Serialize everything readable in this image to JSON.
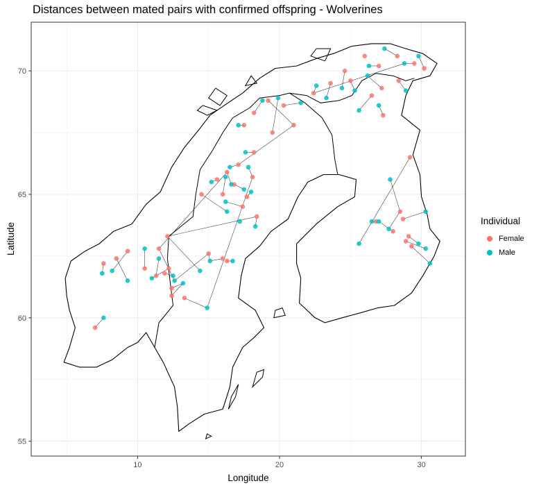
{
  "chart_data": {
    "type": "scatter",
    "title": "Distances between mated pairs with confirmed offspring - Wolverines",
    "xlabel": "Longitude",
    "ylabel": "Latitude",
    "xlim": [
      2.5,
      33.1
    ],
    "ylim": [
      54.4,
      71.97
    ],
    "x_ticks": [
      10,
      20,
      30
    ],
    "y_ticks": [
      55,
      60,
      65,
      70
    ],
    "grid": true,
    "legend": {
      "title": "Individual",
      "position": "right"
    },
    "colors": {
      "Female": "#F8766D",
      "Male": "#00BFC4",
      "lines": "#222222",
      "map": "#000000"
    },
    "series": [
      {
        "name": "Female",
        "points": [
          [
            7.0,
            59.6
          ],
          [
            7.6,
            62.2
          ],
          [
            8.5,
            62.4
          ],
          [
            9.3,
            62.7
          ],
          [
            10.5,
            62.0
          ],
          [
            11.3,
            61.7
          ],
          [
            11.9,
            61.8
          ],
          [
            12.4,
            61.2
          ],
          [
            12.2,
            62.0
          ],
          [
            11.5,
            62.8
          ],
          [
            12.1,
            63.3
          ],
          [
            12.4,
            60.9
          ],
          [
            13.3,
            60.8
          ],
          [
            15.0,
            62.6
          ],
          [
            16.0,
            62.4
          ],
          [
            16.3,
            62.3
          ],
          [
            14.5,
            65.0
          ],
          [
            15.6,
            65.6
          ],
          [
            16.0,
            65.0
          ],
          [
            16.3,
            65.9
          ],
          [
            16.8,
            65.4
          ],
          [
            17.1,
            66.2
          ],
          [
            17.7,
            64.9
          ],
          [
            18.4,
            64.1
          ],
          [
            17.4,
            64.5
          ],
          [
            18.1,
            65.7
          ],
          [
            18.2,
            66.7
          ],
          [
            17.5,
            67.8
          ],
          [
            18.2,
            68.3
          ],
          [
            19.5,
            67.5
          ],
          [
            20.3,
            68.6
          ],
          [
            21.0,
            67.8
          ],
          [
            19.2,
            68.8
          ],
          [
            22.4,
            69.1
          ],
          [
            23.6,
            69.5
          ],
          [
            24.6,
            70.0
          ],
          [
            25.0,
            69.6
          ],
          [
            26.5,
            69.0
          ],
          [
            27.2,
            69.3
          ],
          [
            28.4,
            69.6
          ],
          [
            29.5,
            70.3
          ],
          [
            30.2,
            70.1
          ],
          [
            28.3,
            70.6
          ],
          [
            27.0,
            70.2
          ],
          [
            26.0,
            70.6
          ],
          [
            29.2,
            66.5
          ],
          [
            28.5,
            64.3
          ],
          [
            29.1,
            63.3
          ],
          [
            28.9,
            63.1
          ],
          [
            28.0,
            63.5
          ],
          [
            26.8,
            63.9
          ],
          [
            28.7,
            64.0
          ],
          [
            29.3,
            62.9
          ],
          [
            27.3,
            68.2
          ]
        ]
      },
      {
        "name": "Male",
        "points": [
          [
            7.6,
            60.0
          ],
          [
            7.5,
            61.8
          ],
          [
            9.3,
            61.5
          ],
          [
            8.2,
            61.9
          ],
          [
            10.5,
            62.8
          ],
          [
            11.5,
            62.4
          ],
          [
            12.5,
            61.7
          ],
          [
            13.2,
            61.4
          ],
          [
            11.0,
            61.6
          ],
          [
            12.6,
            61.5
          ],
          [
            14.4,
            61.9
          ],
          [
            14.9,
            60.4
          ],
          [
            15.1,
            62.3
          ],
          [
            16.7,
            62.3
          ],
          [
            16.3,
            64.3
          ],
          [
            15.2,
            65.5
          ],
          [
            16.2,
            65.7
          ],
          [
            16.6,
            65.4
          ],
          [
            17.5,
            65.2
          ],
          [
            18.0,
            65.1
          ],
          [
            16.5,
            66.1
          ],
          [
            17.6,
            66.7
          ],
          [
            17.8,
            66.1
          ],
          [
            16.2,
            64.7
          ],
          [
            18.3,
            63.7
          ],
          [
            17.2,
            63.9
          ],
          [
            17.1,
            67.8
          ],
          [
            18.8,
            68.8
          ],
          [
            19.9,
            68.9
          ],
          [
            21.5,
            68.7
          ],
          [
            22.6,
            69.4
          ],
          [
            23.3,
            68.9
          ],
          [
            24.4,
            69.3
          ],
          [
            25.3,
            69.2
          ],
          [
            25.6,
            68.4
          ],
          [
            26.2,
            69.8
          ],
          [
            26.3,
            70.2
          ],
          [
            27.4,
            70.9
          ],
          [
            28.8,
            70.3
          ],
          [
            29.8,
            70.6
          ],
          [
            28.9,
            69.2
          ],
          [
            27.0,
            68.6
          ],
          [
            25.6,
            63.0
          ],
          [
            26.5,
            63.9
          ],
          [
            27.8,
            65.6
          ],
          [
            27.0,
            63.9
          ],
          [
            29.8,
            63.0
          ],
          [
            30.3,
            62.8
          ],
          [
            30.6,
            62.2
          ],
          [
            30.3,
            64.3
          ],
          [
            27.7,
            63.6
          ]
        ]
      }
    ],
    "pairs": [
      [
        7.0,
        59.6,
        7.6,
        60.0
      ],
      [
        7.6,
        62.2,
        7.5,
        61.8
      ],
      [
        8.5,
        62.4,
        9.3,
        61.5
      ],
      [
        9.3,
        62.7,
        8.2,
        61.9
      ],
      [
        10.5,
        62.0,
        10.5,
        62.8
      ],
      [
        11.3,
        61.7,
        11.5,
        62.4
      ],
      [
        11.9,
        61.8,
        12.5,
        61.7
      ],
      [
        12.4,
        61.2,
        13.2,
        61.4
      ],
      [
        12.2,
        62.0,
        11.0,
        61.6
      ],
      [
        11.5,
        62.8,
        12.6,
        61.5
      ],
      [
        12.1,
        63.3,
        14.4,
        61.9
      ],
      [
        13.3,
        60.8,
        14.9,
        60.4
      ],
      [
        15.0,
        62.6,
        15.1,
        62.3
      ],
      [
        16.3,
        62.3,
        16.7,
        62.3
      ],
      [
        14.5,
        65.0,
        16.3,
        64.3
      ],
      [
        15.6,
        65.6,
        15.2,
        65.5
      ],
      [
        16.0,
        65.0,
        16.2,
        65.7
      ],
      [
        16.3,
        65.9,
        16.6,
        65.4
      ],
      [
        16.8,
        65.4,
        17.5,
        65.2
      ],
      [
        17.7,
        64.9,
        18.0,
        65.1
      ],
      [
        17.1,
        66.2,
        16.5,
        66.1
      ],
      [
        18.2,
        66.7,
        17.6,
        66.7
      ],
      [
        18.1,
        65.7,
        17.8,
        66.1
      ],
      [
        17.4,
        64.5,
        16.2,
        64.7
      ],
      [
        18.4,
        64.1,
        18.3,
        63.7
      ],
      [
        17.5,
        67.8,
        17.1,
        67.8
      ],
      [
        18.2,
        68.3,
        18.8,
        68.8
      ],
      [
        19.5,
        67.5,
        19.9,
        68.9
      ],
      [
        20.3,
        68.6,
        21.5,
        68.7
      ],
      [
        21.0,
        67.8,
        19.2,
        68.8
      ],
      [
        22.4,
        69.1,
        22.6,
        69.4
      ],
      [
        23.6,
        69.5,
        23.3,
        68.9
      ],
      [
        24.6,
        70.0,
        24.4,
        69.3
      ],
      [
        25.0,
        69.6,
        25.3,
        69.2
      ],
      [
        26.5,
        69.0,
        25.6,
        68.4
      ],
      [
        27.2,
        69.3,
        26.2,
        69.8
      ],
      [
        27.0,
        70.2,
        26.3,
        70.2
      ],
      [
        28.3,
        70.6,
        27.4,
        70.9
      ],
      [
        29.5,
        70.3,
        28.8,
        70.3
      ],
      [
        30.2,
        70.1,
        29.8,
        70.6
      ],
      [
        28.4,
        69.6,
        28.9,
        69.2
      ],
      [
        27.3,
        68.2,
        27.0,
        68.6
      ],
      [
        29.2,
        66.5,
        25.6,
        63.0
      ],
      [
        26.8,
        63.9,
        26.5,
        63.9
      ],
      [
        28.5,
        64.3,
        27.8,
        65.6
      ],
      [
        28.0,
        63.5,
        27.0,
        63.9
      ],
      [
        29.1,
        63.3,
        29.8,
        63.0
      ],
      [
        28.9,
        63.1,
        30.3,
        62.8
      ],
      [
        29.3,
        62.9,
        30.6,
        62.2
      ],
      [
        28.7,
        64.0,
        30.3,
        64.3
      ],
      [
        28.5,
        64.3,
        27.7,
        63.6
      ],
      [
        12.4,
        60.9,
        13.2,
        61.4
      ],
      [
        16.0,
        62.4,
        15.1,
        62.3
      ],
      [
        15.0,
        62.6,
        12.6,
        61.5
      ],
      [
        18.4,
        64.1,
        12.1,
        63.3
      ],
      [
        16.3,
        65.9,
        11.5,
        62.8
      ],
      [
        21.0,
        67.8,
        17.1,
        66.2
      ],
      [
        22.4,
        69.1,
        28.8,
        70.3
      ],
      [
        18.1,
        65.7,
        14.9,
        60.4
      ]
    ]
  },
  "basemap": {
    "outline": [
      [
        4.8,
        58.2
      ],
      [
        5.2,
        58.8
      ],
      [
        5.6,
        59.6
      ],
      [
        5.2,
        60.3
      ],
      [
        5.0,
        60.9
      ],
      [
        4.9,
        61.6
      ],
      [
        5.3,
        62.3
      ],
      [
        6.3,
        62.7
      ],
      [
        7.3,
        63.0
      ],
      [
        8.3,
        63.5
      ],
      [
        9.6,
        63.8
      ],
      [
        10.6,
        64.6
      ],
      [
        11.6,
        65.1
      ],
      [
        12.4,
        66.1
      ],
      [
        13.3,
        66.9
      ],
      [
        14.3,
        67.6
      ],
      [
        15.1,
        68.2
      ],
      [
        16.1,
        68.6
      ],
      [
        17.4,
        69.1
      ],
      [
        18.6,
        69.7
      ],
      [
        19.7,
        70.1
      ],
      [
        21.2,
        70.2
      ],
      [
        22.6,
        70.5
      ],
      [
        23.8,
        70.7
      ],
      [
        25.1,
        71.0
      ],
      [
        26.5,
        71.1
      ],
      [
        27.8,
        71.1
      ],
      [
        28.9,
        70.9
      ],
      [
        30.1,
        70.7
      ],
      [
        31.1,
        70.3
      ],
      [
        30.6,
        69.8
      ],
      [
        29.4,
        69.6
      ],
      [
        28.9,
        69.0
      ],
      [
        28.6,
        68.2
      ],
      [
        29.9,
        67.6
      ],
      [
        29.4,
        66.6
      ],
      [
        29.9,
        65.8
      ],
      [
        30.0,
        64.9
      ],
      [
        30.4,
        64.2
      ],
      [
        30.6,
        63.6
      ],
      [
        31.3,
        63.1
      ],
      [
        30.9,
        62.5
      ],
      [
        30.1,
        61.7
      ],
      [
        29.3,
        61.0
      ],
      [
        28.1,
        60.5
      ],
      [
        26.9,
        60.4
      ],
      [
        25.7,
        60.2
      ],
      [
        24.4,
        60.0
      ],
      [
        23.2,
        59.8
      ],
      [
        22.5,
        60.0
      ],
      [
        21.4,
        60.6
      ],
      [
        21.5,
        61.6
      ],
      [
        21.2,
        62.2
      ],
      [
        21.2,
        63.0
      ],
      [
        22.6,
        63.8
      ],
      [
        24.1,
        64.5
      ],
      [
        25.3,
        64.9
      ],
      [
        25.4,
        65.6
      ],
      [
        24.2,
        65.8
      ],
      [
        23.1,
        65.8
      ],
      [
        22.0,
        65.5
      ],
      [
        21.3,
        64.9
      ],
      [
        20.6,
        64.0
      ],
      [
        19.4,
        63.5
      ],
      [
        18.6,
        62.9
      ],
      [
        17.6,
        62.4
      ],
      [
        17.3,
        61.7
      ],
      [
        17.1,
        60.8
      ],
      [
        18.3,
        60.3
      ],
      [
        18.9,
        59.6
      ],
      [
        18.2,
        59.2
      ],
      [
        17.4,
        58.8
      ],
      [
        16.7,
        58.0
      ],
      [
        16.5,
        57.2
      ],
      [
        16.0,
        56.3
      ],
      [
        14.7,
        56.1
      ],
      [
        13.6,
        55.7
      ],
      [
        12.9,
        55.4
      ],
      [
        12.8,
        56.4
      ],
      [
        12.6,
        57.2
      ],
      [
        11.8,
        58.2
      ],
      [
        11.2,
        58.8
      ],
      [
        10.6,
        59.4
      ],
      [
        10.0,
        59.0
      ],
      [
        9.3,
        58.8
      ],
      [
        8.2,
        58.3
      ],
      [
        7.1,
        58.0
      ],
      [
        5.9,
        58.0
      ],
      [
        4.8,
        58.2
      ]
    ],
    "border_no_se": [
      [
        11.2,
        58.8
      ],
      [
        11.5,
        59.8
      ],
      [
        12.5,
        60.5
      ],
      [
        12.3,
        61.4
      ],
      [
        12.1,
        62.4
      ],
      [
        12.2,
        63.3
      ],
      [
        13.9,
        64.1
      ],
      [
        14.1,
        65.0
      ],
      [
        14.4,
        66.0
      ],
      [
        15.3,
        66.8
      ],
      [
        16.0,
        67.5
      ],
      [
        16.7,
        68.1
      ],
      [
        17.9,
        68.5
      ],
      [
        18.6,
        68.9
      ],
      [
        20.0,
        69.0
      ],
      [
        20.7,
        69.1
      ]
    ],
    "border_se_fi": [
      [
        20.7,
        69.1
      ],
      [
        21.8,
        68.7
      ],
      [
        23.0,
        68.1
      ],
      [
        23.7,
        67.4
      ],
      [
        23.9,
        66.4
      ],
      [
        24.1,
        65.8
      ]
    ],
    "border_no_fi": [
      [
        20.7,
        69.1
      ],
      [
        21.9,
        69.0
      ],
      [
        22.9,
        68.7
      ],
      [
        24.2,
        68.8
      ],
      [
        25.1,
        69.0
      ],
      [
        25.8,
        69.6
      ],
      [
        26.8,
        69.9
      ],
      [
        28.0,
        69.8
      ],
      [
        28.9,
        69.6
      ],
      [
        29.5,
        69.7
      ]
    ],
    "islands": [
      [
        [
          14.2,
          68.4
        ],
        [
          14.9,
          68.2
        ],
        [
          15.6,
          68.4
        ],
        [
          14.6,
          68.6
        ],
        [
          14.2,
          68.4
        ]
      ],
      [
        [
          15.0,
          68.9
        ],
        [
          15.8,
          68.6
        ],
        [
          16.3,
          69.0
        ],
        [
          15.5,
          69.3
        ],
        [
          15.0,
          68.9
        ]
      ],
      [
        [
          17.6,
          69.4
        ],
        [
          18.4,
          69.5
        ],
        [
          18.0,
          69.8
        ],
        [
          17.6,
          69.4
        ]
      ],
      [
        [
          22.2,
          70.6
        ],
        [
          23.2,
          70.4
        ],
        [
          23.6,
          70.9
        ],
        [
          22.6,
          70.9
        ],
        [
          22.2,
          70.6
        ]
      ],
      [
        [
          18.1,
          57.2
        ],
        [
          18.8,
          57.6
        ],
        [
          18.9,
          57.9
        ],
        [
          18.4,
          57.8
        ],
        [
          18.1,
          57.2
        ]
      ],
      [
        [
          16.4,
          56.3
        ],
        [
          16.9,
          56.8
        ],
        [
          17.1,
          57.3
        ],
        [
          16.6,
          56.8
        ],
        [
          16.4,
          56.3
        ]
      ],
      [
        [
          14.8,
          55.1
        ],
        [
          15.2,
          55.2
        ],
        [
          14.9,
          55.3
        ],
        [
          14.8,
          55.1
        ]
      ],
      [
        [
          19.6,
          60.0
        ],
        [
          20.4,
          60.1
        ],
        [
          20.2,
          60.4
        ],
        [
          19.7,
          60.3
        ],
        [
          19.6,
          60.0
        ]
      ]
    ]
  }
}
